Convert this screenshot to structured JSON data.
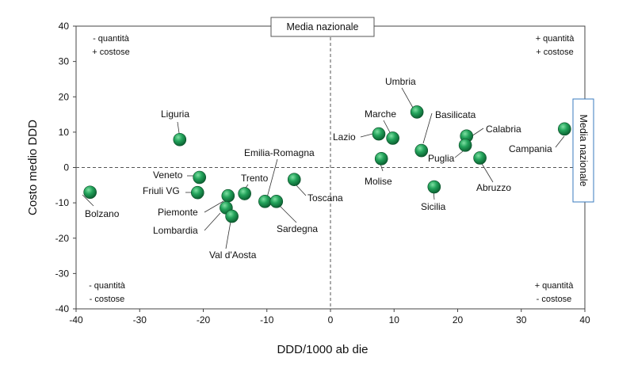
{
  "chart_data": {
    "type": "scatter",
    "xlabel": "DDD/1000 ab die",
    "ylabel": "Costo medio DDD",
    "xlim": [
      -40,
      40
    ],
    "ylim": [
      -40,
      40
    ],
    "x_ticks": [
      -40,
      -30,
      -20,
      -10,
      0,
      10,
      20,
      30,
      40
    ],
    "y_ticks": [
      -40,
      -30,
      -20,
      -10,
      0,
      10,
      20,
      30,
      40
    ],
    "grid": false,
    "reference_lines": {
      "x": 0,
      "y": 0
    },
    "reference_labels": {
      "vertical": "Media nazionale",
      "horizontal": "Media nazionale"
    },
    "marker_color": "#1f8a4c",
    "points": [
      {
        "label": "Bolzano",
        "x": -37.8,
        "y": -7.0
      },
      {
        "label": "Liguria",
        "x": -23.7,
        "y": 7.9
      },
      {
        "label": "Veneto",
        "x": -20.6,
        "y": -2.8
      },
      {
        "label": "Friuli VG",
        "x": -20.9,
        "y": -7.1
      },
      {
        "label": "Piemonte",
        "x": -16.1,
        "y": -8.0
      },
      {
        "label": "Lombardia",
        "x": -16.4,
        "y": -11.4
      },
      {
        "label": "Val d'Aosta",
        "x": -15.5,
        "y": -13.8
      },
      {
        "label": "Trento",
        "x": -13.5,
        "y": -7.4
      },
      {
        "label": "Emilia-Romagna",
        "x": -10.3,
        "y": -9.6
      },
      {
        "label": "Sardegna",
        "x": -8.5,
        "y": -9.6
      },
      {
        "label": "Toscana",
        "x": -5.7,
        "y": -3.4
      },
      {
        "label": "Lazio",
        "x": 7.6,
        "y": 9.5
      },
      {
        "label": "Marche",
        "x": 9.8,
        "y": 8.3
      },
      {
        "label": "Molise",
        "x": 8.0,
        "y": 2.5
      },
      {
        "label": "Umbria",
        "x": 13.6,
        "y": 15.7
      },
      {
        "label": "Basilicata",
        "x": 14.3,
        "y": 4.8
      },
      {
        "label": "Sicilia",
        "x": 16.3,
        "y": -5.5
      },
      {
        "label": "Calabria",
        "x": 21.4,
        "y": 8.9
      },
      {
        "label": "Puglia",
        "x": 21.2,
        "y": 6.3
      },
      {
        "label": "Abruzzo",
        "x": 23.5,
        "y": 2.7
      },
      {
        "label": "Campania",
        "x": 36.8,
        "y": 10.9
      }
    ],
    "annotations": [
      {
        "text": "- quantità",
        "quadrant": "top-left",
        "line": 1
      },
      {
        "text": "+ costose",
        "quadrant": "top-left",
        "line": 2
      },
      {
        "text": "+ quantità",
        "quadrant": "top-right",
        "line": 1
      },
      {
        "text": "+ costose",
        "quadrant": "top-right",
        "line": 2
      },
      {
        "text": "- quantità",
        "quadrant": "bottom-left",
        "line": 1
      },
      {
        "text": "- costose",
        "quadrant": "bottom-left",
        "line": 2
      },
      {
        "text": "+ quantità",
        "quadrant": "bottom-right",
        "line": 1
      },
      {
        "text": "- costose",
        "quadrant": "bottom-right",
        "line": 2
      }
    ]
  }
}
